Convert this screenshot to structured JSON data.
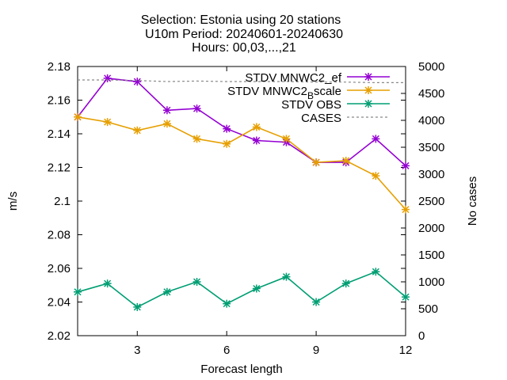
{
  "chart_data": {
    "type": "line",
    "title_lines": [
      "Selection: Estonia using    20 stations",
      "U10m   Period: 20240601-20240630",
      "Hours: 00,03,...,21"
    ],
    "xlabel": "Forecast length",
    "ylabel": "m/s",
    "y2label": "No cases",
    "xlim": [
      1,
      12
    ],
    "ylim": [
      2.02,
      2.18
    ],
    "y2lim": [
      0,
      5000
    ],
    "x_ticks": [
      3,
      6,
      9,
      12
    ],
    "y_ticks": [
      "2.02",
      "2.04",
      "2.06",
      "2.08",
      "2.1",
      "2.12",
      "2.14",
      "2.16",
      "2.18"
    ],
    "y2_ticks": [
      "0",
      "500",
      "1000",
      "1500",
      "2000",
      "2500",
      "3000",
      "3500",
      "4000",
      "4500",
      "5000"
    ],
    "x": [
      1,
      2,
      3,
      4,
      5,
      6,
      7,
      8,
      9,
      10,
      11,
      12
    ],
    "legend_position": "top-right",
    "grid": false,
    "series": [
      {
        "name": "STDV MNWC2_ef",
        "axis": "y",
        "color": "#9400d3",
        "marker": "x-star",
        "values": [
          2.15,
          2.173,
          2.171,
          2.154,
          2.155,
          2.143,
          2.136,
          2.135,
          2.123,
          2.123,
          2.137,
          2.121
        ]
      },
      {
        "name": "STDV MNWC2_Bscale",
        "legend_parts": [
          "STDV MNWC2",
          "B",
          "scale"
        ],
        "axis": "y",
        "color": "#e69f00",
        "marker": "x-star",
        "values": [
          2.15,
          2.147,
          2.142,
          2.146,
          2.137,
          2.134,
          2.144,
          2.137,
          2.123,
          2.124,
          2.115,
          2.095
        ]
      },
      {
        "name": "STDV OBS",
        "axis": "y",
        "color": "#009e73",
        "marker": "x-star",
        "values": [
          2.046,
          2.051,
          2.037,
          2.046,
          2.052,
          2.039,
          2.048,
          2.055,
          2.04,
          2.051,
          2.058,
          2.043
        ]
      },
      {
        "name": "CASES",
        "axis": "y2",
        "color": "#888888",
        "dashed": true,
        "values": [
          4750,
          4750,
          4740,
          4720,
          4730,
          4720,
          4720,
          4720,
          4710,
          4710,
          4700,
          4700
        ]
      }
    ]
  }
}
